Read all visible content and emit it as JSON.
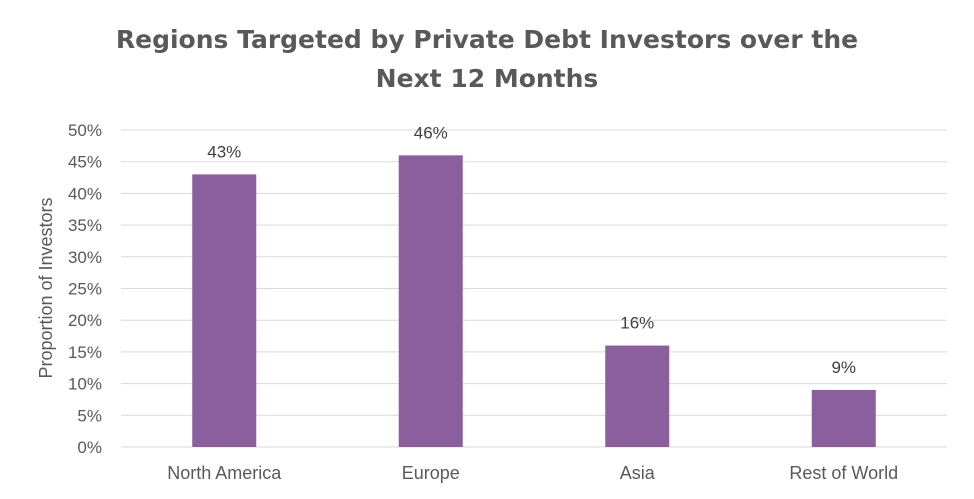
{
  "chart_data": {
    "type": "bar",
    "title_lines": [
      "Regions Targeted by Private Debt Investors over the",
      "Next 12 Months"
    ],
    "title": "Regions Targeted by Private Debt Investors over the Next 12 Months",
    "xlabel": "",
    "ylabel": "Proportion of Investors",
    "categories": [
      "North America",
      "Europe",
      "Asia",
      "Rest of World"
    ],
    "values": [
      43,
      46,
      16,
      9
    ],
    "data_labels": [
      "43%",
      "46%",
      "16%",
      "9%"
    ],
    "ylim": [
      0,
      50
    ],
    "yticks": [
      0,
      5,
      10,
      15,
      20,
      25,
      30,
      35,
      40,
      45,
      50
    ],
    "ytick_labels": [
      "0%",
      "5%",
      "10%",
      "15%",
      "20%",
      "25%",
      "30%",
      "35%",
      "40%",
      "45%",
      "50%"
    ],
    "grid": true,
    "legend": "none",
    "bar_color": "#8B5E9E",
    "grid_color": "#D9D9D9"
  }
}
